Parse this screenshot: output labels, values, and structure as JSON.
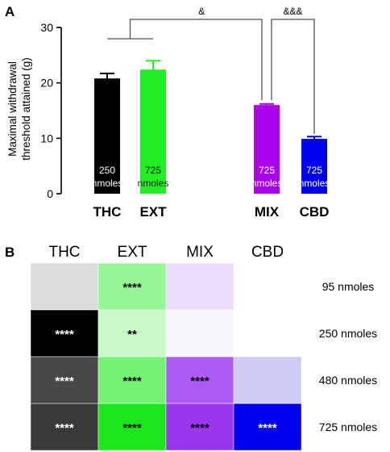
{
  "panel_a_letter": "A",
  "panel_b_letter": "B",
  "chart_data": [
    {
      "type": "bar",
      "ylabel_lines": [
        "Maximal withdrawal",
        "threshold attained (g)"
      ],
      "ylim": [
        0,
        30
      ],
      "yticks": [
        "0",
        "10",
        "20",
        "30"
      ],
      "categories": [
        "THC",
        "EXT",
        "MIX",
        "CBD"
      ],
      "values": [
        20.8,
        22.4,
        16.0,
        9.9
      ],
      "errors": [
        0.9,
        1.6,
        0.2,
        0.4
      ],
      "colors": [
        "#000000",
        "#22ee22",
        "#aa00ee",
        "#0000ee"
      ],
      "bar_label_line1": [
        "250",
        "725",
        "725",
        "725"
      ],
      "bar_label_line2": [
        "nmoles",
        "nmoles",
        "nmoles",
        "nmoles"
      ],
      "bar_label_colors": [
        "#ffffff",
        "#222222",
        "#ffffff",
        "#ffffff"
      ],
      "significance": [
        {
          "label": "&",
          "note": "THC/EXT group vs MIX"
        },
        {
          "label": "&&&",
          "note": "MIX vs CBD"
        }
      ]
    },
    {
      "type": "heatmap",
      "columns": [
        "THC",
        "EXT",
        "MIX",
        "CBD"
      ],
      "rows": [
        "95 nmoles",
        "250 nmoles",
        "480 nmoles",
        "725 nmoles"
      ],
      "cells": [
        [
          {
            "color": "#dcdcdc",
            "mark": ""
          },
          {
            "color": "#96f696",
            "mark": "****"
          },
          {
            "color": "#ecdcfa",
            "mark": ""
          },
          {
            "color": "#ffffff",
            "mark": ""
          }
        ],
        [
          {
            "color": "#000000",
            "mark": "****"
          },
          {
            "color": "#c8fac8",
            "mark": "**"
          },
          {
            "color": "#f8f6fd",
            "mark": ""
          },
          {
            "color": "#ffffff",
            "mark": ""
          }
        ],
        [
          {
            "color": "#484848",
            "mark": "****"
          },
          {
            "color": "#74f274",
            "mark": "****"
          },
          {
            "color": "#ad5cf3",
            "mark": "****"
          },
          {
            "color": "#ccccf4",
            "mark": ""
          }
        ],
        [
          {
            "color": "#393939",
            "mark": "****"
          },
          {
            "color": "#1ae61a",
            "mark": "****"
          },
          {
            "color": "#9a35f0",
            "mark": "****"
          },
          {
            "color": "#0000ee",
            "mark": "****"
          }
        ]
      ],
      "mark_colors": [
        [
          "#000000",
          "#000000",
          "#000000",
          "#000000"
        ],
        [
          "#ffffff",
          "#000000",
          "#000000",
          "#000000"
        ],
        [
          "#ffffff",
          "#000000",
          "#000000",
          "#000000"
        ],
        [
          "#ffffff",
          "#000000",
          "#000000",
          "#ffffff"
        ]
      ]
    }
  ]
}
